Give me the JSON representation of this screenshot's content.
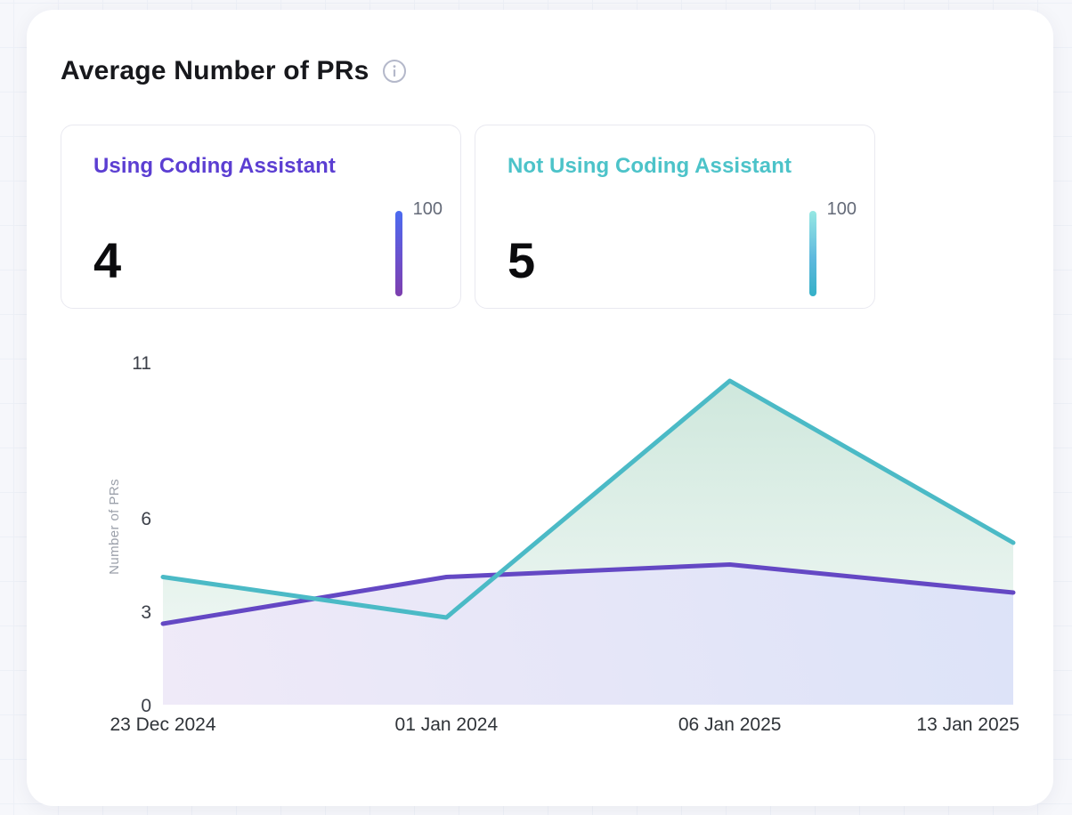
{
  "header": {
    "title": "Average Number of PRs"
  },
  "stats": [
    {
      "label": "Using Coding Assistant",
      "value": "4",
      "gauge_max": "100",
      "accent_color": "#5b3ed2",
      "bar_gradient": "linear-gradient(180deg, #4b6bf0 0%, #6b51cd 55%, #7d3fae 100%)"
    },
    {
      "label": "Not Using Coding Assistant",
      "value": "5",
      "gauge_max": "100",
      "accent_color": "#4cc3c9",
      "bar_gradient": "linear-gradient(180deg, #96e8e3 0%, #5fb9de 55%, #35b0c7 100%)"
    }
  ],
  "chart_data": {
    "type": "area",
    "title": "Average Number of PRs",
    "xlabel": "",
    "ylabel": "Number of PRs",
    "x": [
      "23 Dec 2024",
      "01 Jan 2024",
      "06 Jan 2025",
      "13 Jan 2025"
    ],
    "y_ticks": [
      0,
      3,
      6,
      11
    ],
    "ylim": [
      0,
      11
    ],
    "grid": false,
    "legend_position": "none",
    "series": [
      {
        "id": "using",
        "name": "Using Coding Assistant",
        "values": [
          2.6,
          4.1,
          4.5,
          3.6
        ],
        "color": "#6448c4",
        "area_from": "rgba(239,233,248,0.96)",
        "area_to": "rgba(220,226,248,0.96)",
        "area_direction": "horizontal"
      },
      {
        "id": "not_using",
        "name": "Not Using Coding Assistant",
        "values": [
          4.1,
          2.8,
          10.4,
          5.2
        ],
        "color": "#4bbac6",
        "area_from": "rgba(134,196,168,0.40)",
        "area_to": "rgba(134,196,168,0.08)",
        "area_direction": "vertical"
      }
    ]
  }
}
